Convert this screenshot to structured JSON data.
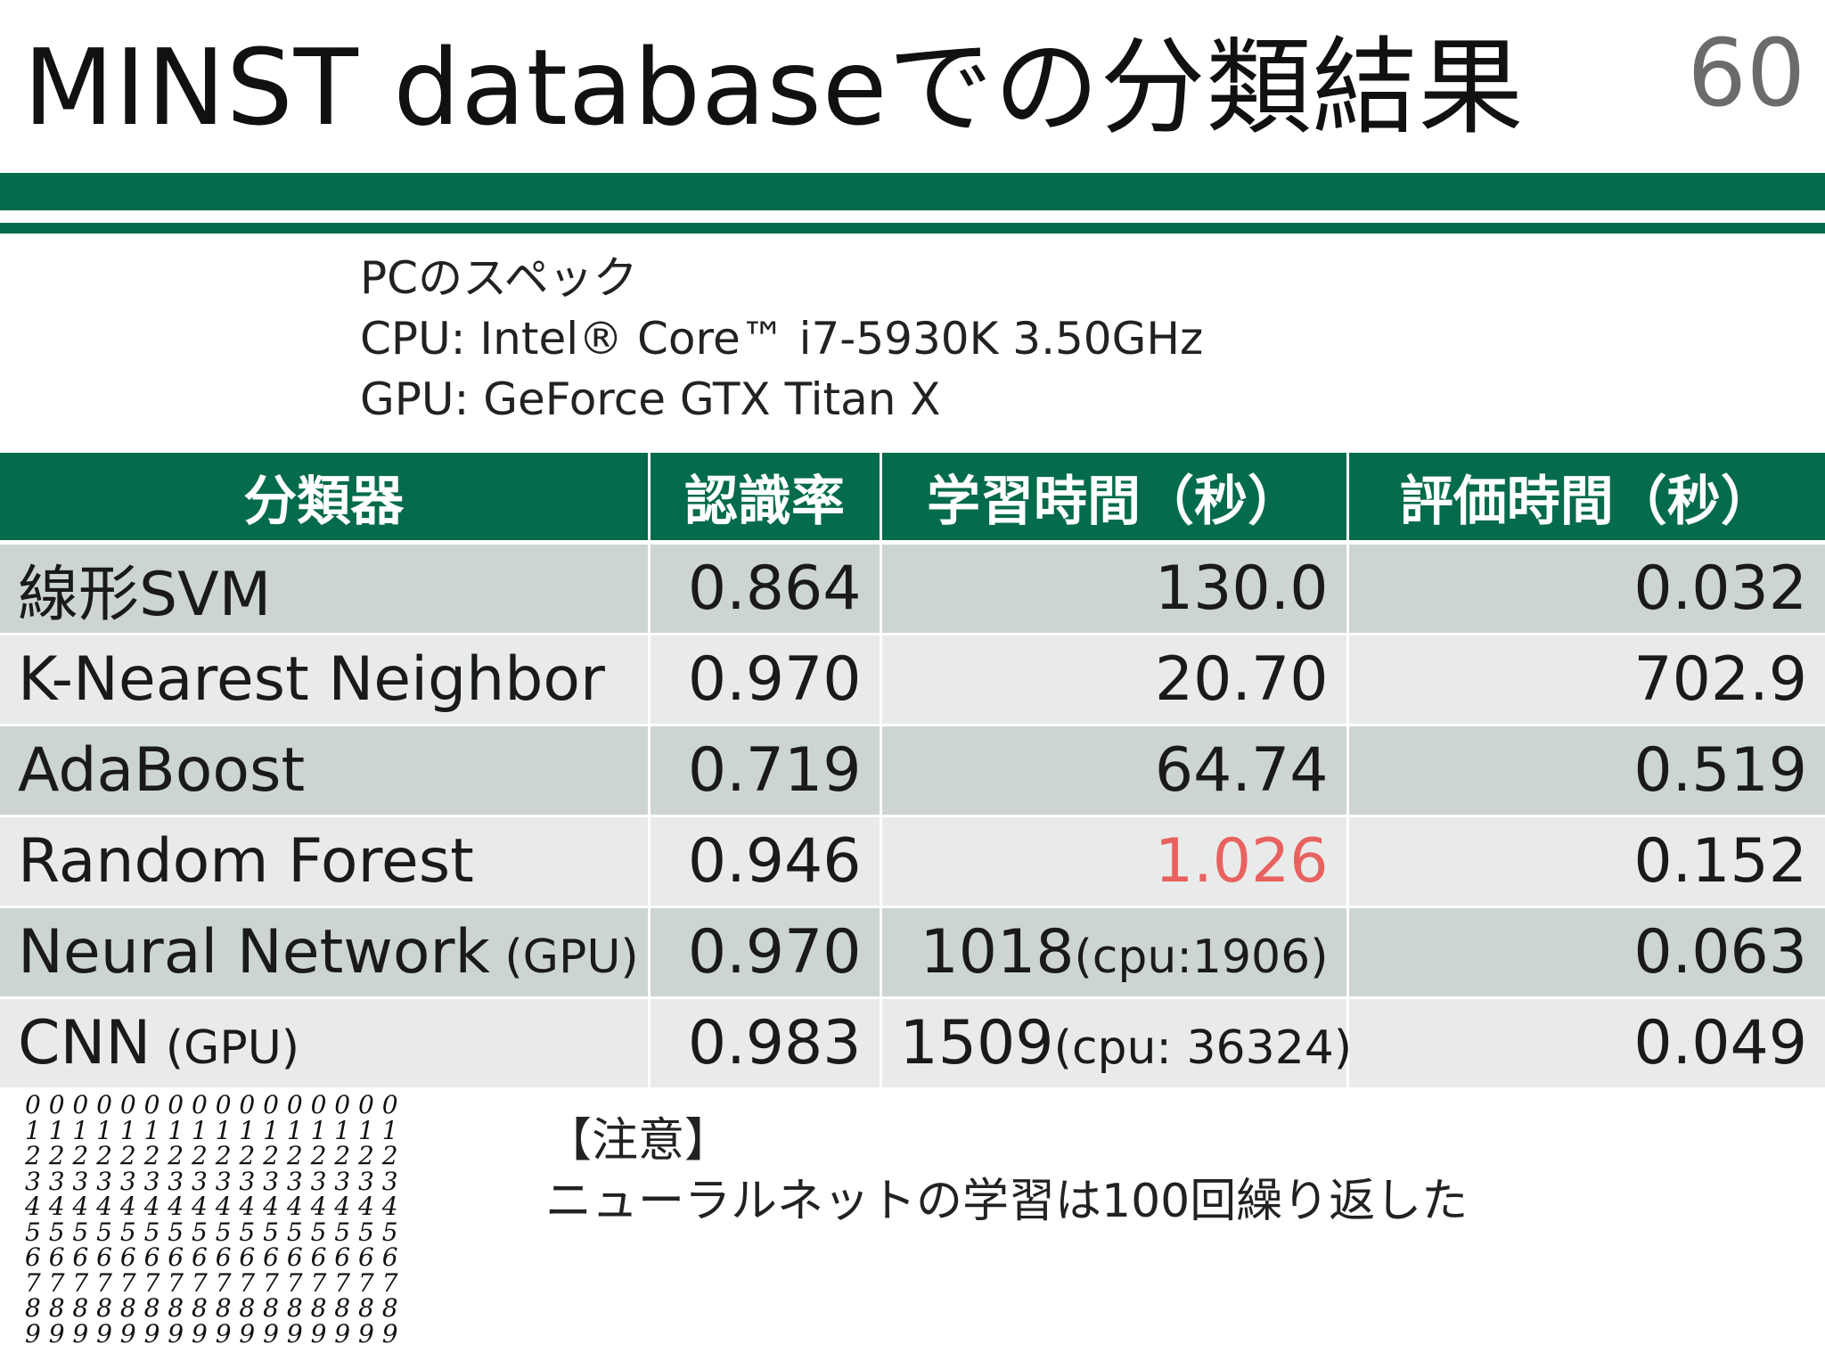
{
  "slide": {
    "title": "MINST databaseでの分類結果",
    "page_number": "60"
  },
  "specs": {
    "heading": "PCのスペック",
    "cpu": "CPU: Intel® Core™ i7-5930K 3.50GHz",
    "gpu": "GPU: GeForce GTX Titan X"
  },
  "table": {
    "headers": [
      "分類器",
      "認識率",
      "学習時間（秒）",
      "評価時間（秒）"
    ],
    "rows": [
      {
        "name": "線形SVM",
        "name_suffix": "",
        "accuracy": "0.864",
        "train_main": "130.0",
        "train_sub": "",
        "eval": "0.032"
      },
      {
        "name": "K-Nearest Neighbor",
        "name_suffix": "",
        "accuracy": "0.970",
        "train_main": "20.70",
        "train_sub": "",
        "eval": "702.9"
      },
      {
        "name": "AdaBoost",
        "name_suffix": "",
        "accuracy": "0.719",
        "train_main": "64.74",
        "train_sub": "",
        "eval": "0.519"
      },
      {
        "name": "Random Forest",
        "name_suffix": "",
        "accuracy": "0.946",
        "train_main": "1.026",
        "train_sub": "",
        "eval": "0.152"
      },
      {
        "name": "Neural Network",
        "name_suffix": " (GPU)",
        "accuracy": "0.970",
        "train_main": "1018",
        "train_sub": "(cpu:1906)",
        "eval": "0.063"
      },
      {
        "name": "CNN",
        "name_suffix": " (GPU)",
        "accuracy": "0.983",
        "train_main": "1509",
        "train_sub": "(cpu: 36324)",
        "eval": "0.049"
      }
    ],
    "colors": {
      "highlight_red": "#e8625f",
      "highlight_blue": "#1f7fd6",
      "header_bg": "#046b4c"
    }
  },
  "digits_image": {
    "rows": [
      "0 0 0 0 0 0 0 0 0 0 0 0 0 0 0 0",
      "1 1 1 1 1 1 1 1 1 1 1 1 1 1 1 1",
      "2 2 2 2 2 2 2 2 2 2 2 2 2 2 2 2",
      "3 3 3 3 3 3 3 3 3 3 3 3 3 3 3 3",
      "4 4 4 4 4 4 4 4 4 4 4 4 4 4 4 4",
      "5 5 5 5 5 5 5 5 5 5 5 5 5 5 5 5",
      "6 6 6 6 6 6 6 6 6 6 6 6 6 6 6 6",
      "7 7 7 7 7 7 7 7 7 7 7 7 7 7 7 7",
      "8 8 8 8 8 8 8 8 8 8 8 8 8 8 8 8",
      "9 9 9 9 9 9 9 9 9 9 9 9 9 9 9 9"
    ]
  },
  "note": {
    "heading": "【注意】",
    "text": "ニューラルネットの学習は100回繰り返した"
  }
}
